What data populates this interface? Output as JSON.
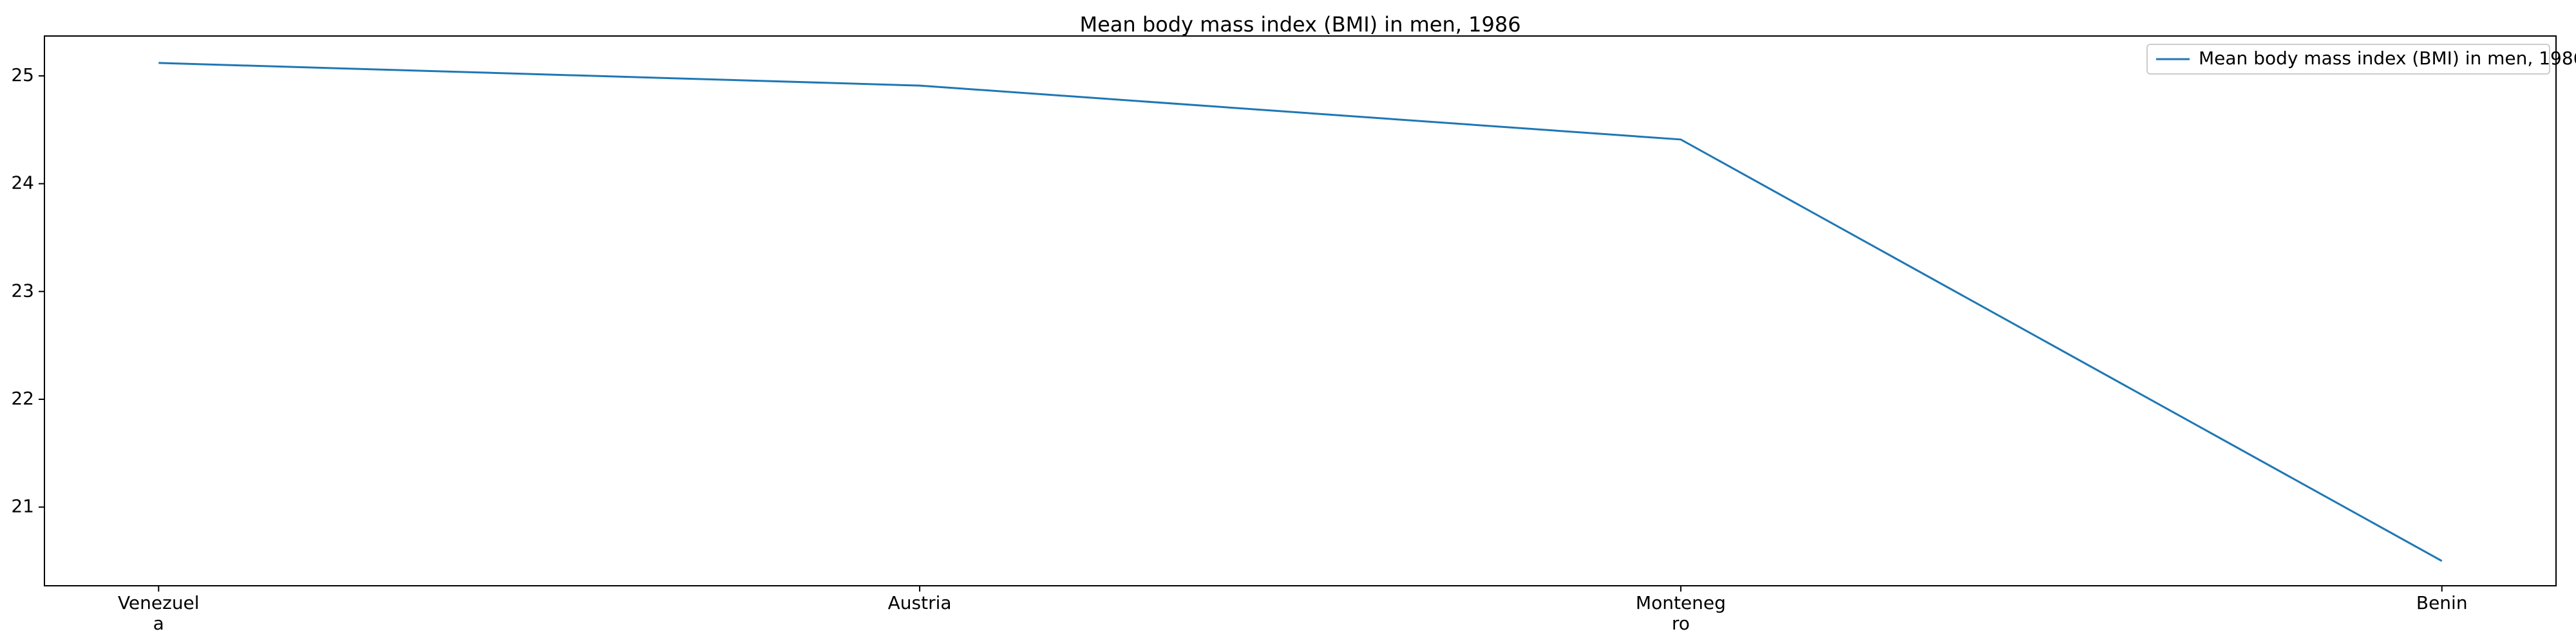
{
  "chart_data": {
    "type": "line",
    "title": "Mean body mass index (BMI) in men, 1986",
    "categories": [
      "Venezuela",
      "Austria",
      "Montenegro",
      "Benin"
    ],
    "series": [
      {
        "name": "Mean body mass index (BMI) in men, 1986",
        "color": "#1f77b4",
        "values": [
          25.12,
          24.91,
          24.41,
          20.5
        ]
      }
    ],
    "ylim": [
      20.27,
      25.37
    ],
    "yticks": [
      21,
      22,
      23,
      24,
      25
    ],
    "legend": "upper right"
  }
}
